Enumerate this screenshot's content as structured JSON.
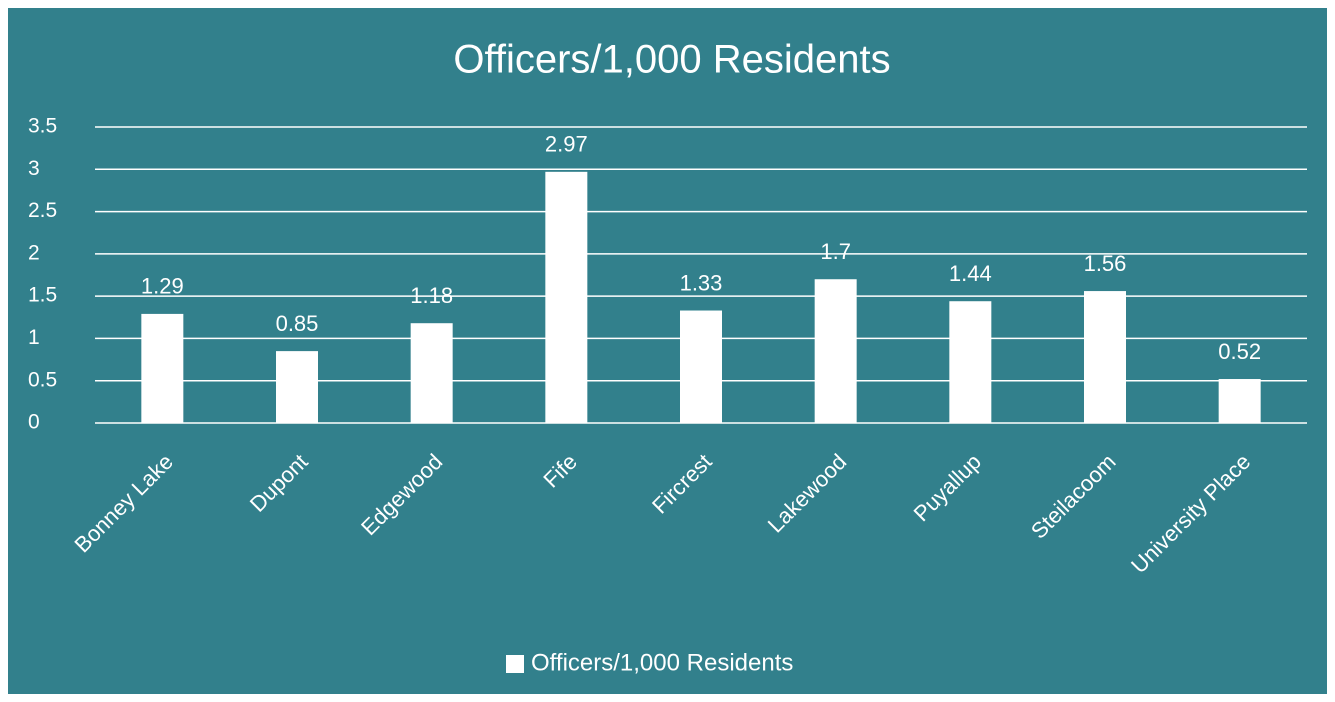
{
  "chart_data": {
    "type": "bar",
    "title": "Officers/1,000 Residents",
    "categories": [
      "Bonney Lake",
      "Dupont",
      "Edgewood",
      "Fife",
      "Fircrest",
      "Lakewood",
      "Puyallup",
      "Steilacoom",
      "University Place"
    ],
    "series": [
      {
        "name": "Officers/1,000 Residents",
        "color": "#ffffff",
        "values": [
          1.29,
          0.85,
          1.18,
          2.97,
          1.33,
          1.7,
          1.44,
          1.56,
          0.52
        ]
      }
    ],
    "ylim": [
      0,
      3.5
    ],
    "yticks": [
      0,
      0.5,
      1,
      1.5,
      2,
      2.5,
      3,
      3.5
    ],
    "grid": true,
    "legend": "bottom"
  }
}
